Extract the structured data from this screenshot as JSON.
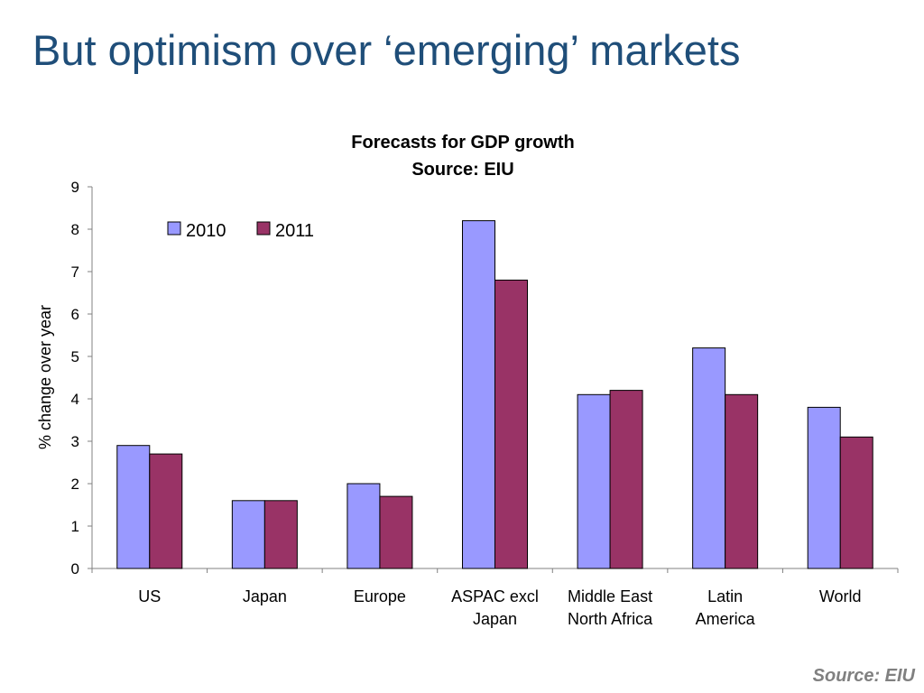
{
  "slide": {
    "title": "But optimism over ‘emerging’ markets",
    "footer_source": "Source: EIU"
  },
  "colors": {
    "title": "#1f4e79",
    "series_2010": "#9999ff",
    "series_2011": "#993366",
    "footer": "#808080"
  },
  "chart_data": {
    "type": "bar",
    "title": "Forecasts for GDP growth",
    "subtitle": "Source: EIU",
    "ylabel": "% change over year",
    "xlabel": "",
    "ylim": [
      0,
      9
    ],
    "yticks": [
      0,
      1,
      2,
      3,
      4,
      5,
      6,
      7,
      8,
      9
    ],
    "grid": false,
    "legend": "top-left",
    "categories": [
      [
        "US"
      ],
      [
        "Japan"
      ],
      [
        "Europe"
      ],
      [
        "ASPAC excl",
        "Japan"
      ],
      [
        "Middle East",
        "North Africa"
      ],
      [
        "Latin",
        "America"
      ],
      [
        "World"
      ]
    ],
    "series": [
      {
        "name": "2010",
        "values": [
          2.9,
          1.6,
          2.0,
          8.2,
          4.1,
          5.2,
          3.8
        ]
      },
      {
        "name": "2011",
        "values": [
          2.7,
          1.6,
          1.7,
          6.8,
          4.2,
          4.1,
          3.1
        ]
      }
    ]
  }
}
